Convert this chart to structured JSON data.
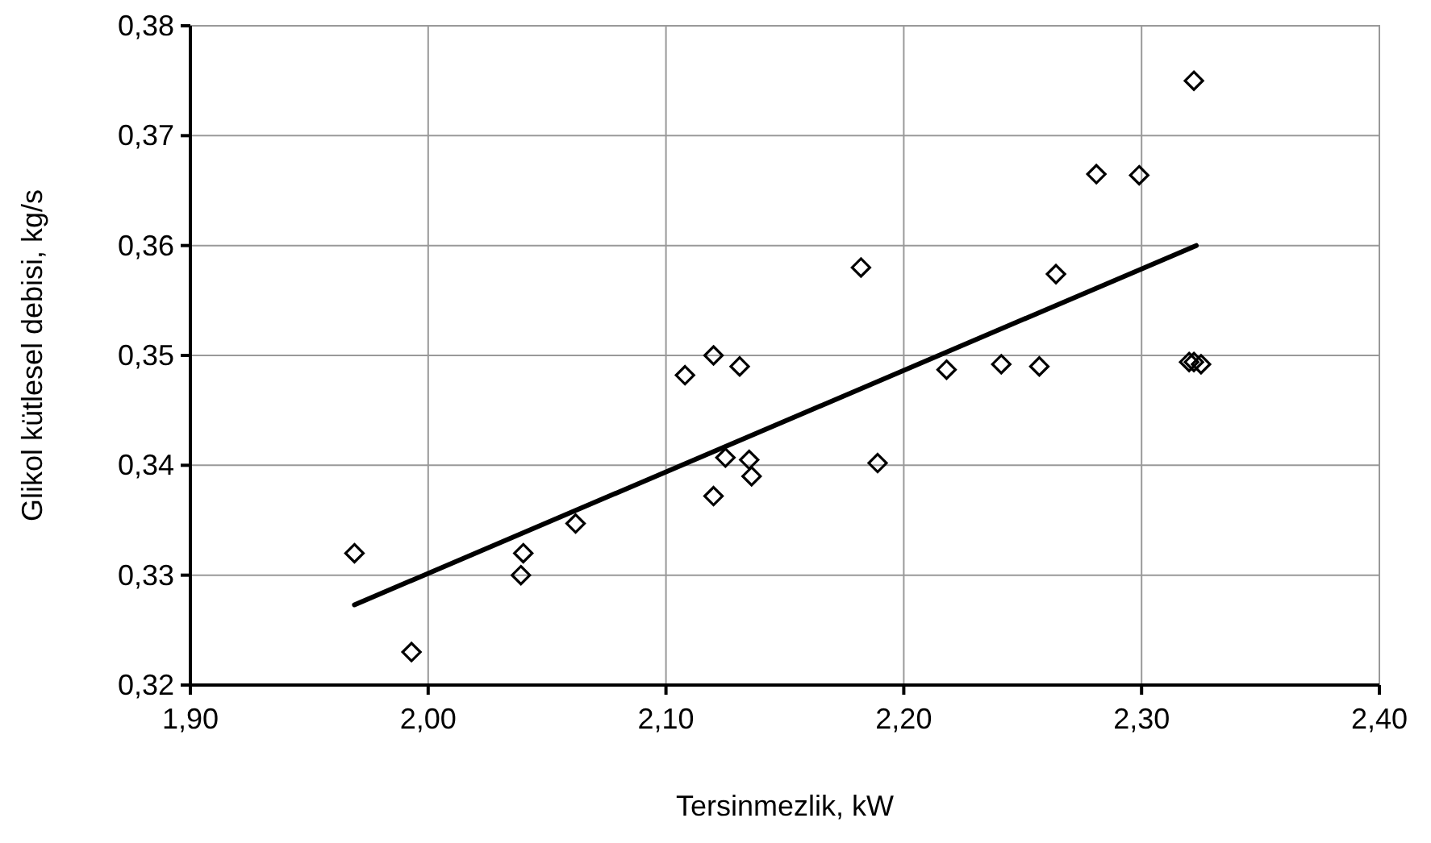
{
  "chart_data": {
    "type": "scatter",
    "xlabel": "Tersinmezlik, kW",
    "ylabel": "Glikol kütlesel debisi, kg/s",
    "xlim": [
      1.9,
      2.4
    ],
    "ylim": [
      0.32,
      0.38
    ],
    "xticks": [
      {
        "value": 1.9,
        "label": "1,90"
      },
      {
        "value": 2.0,
        "label": "2,00"
      },
      {
        "value": 2.1,
        "label": "2,10"
      },
      {
        "value": 2.2,
        "label": "2,20"
      },
      {
        "value": 2.3,
        "label": "2,30"
      },
      {
        "value": 2.4,
        "label": "2,40"
      }
    ],
    "yticks": [
      {
        "value": 0.32,
        "label": "0,32"
      },
      {
        "value": 0.33,
        "label": "0,33"
      },
      {
        "value": 0.34,
        "label": "0,34"
      },
      {
        "value": 0.35,
        "label": "0,35"
      },
      {
        "value": 0.36,
        "label": "0,36"
      },
      {
        "value": 0.37,
        "label": "0,37"
      },
      {
        "value": 0.38,
        "label": "0,38"
      }
    ],
    "grid": true,
    "series": [
      {
        "color": "#000000",
        "marker": "diamond",
        "x": [
          1.969,
          1.993,
          2.039,
          2.04,
          2.062,
          2.108,
          2.12,
          2.131,
          2.12,
          2.125,
          2.135,
          2.136,
          2.182,
          2.189,
          2.218,
          2.241,
          2.257,
          2.264,
          2.281,
          2.299,
          2.322,
          2.32,
          2.322,
          2.325
        ],
        "values": [
          0.332,
          0.323,
          0.33,
          0.332,
          0.3347,
          0.3482,
          0.35,
          0.349,
          0.3372,
          0.3407,
          0.3405,
          0.339,
          0.358,
          0.3402,
          0.3487,
          0.3492,
          0.349,
          0.3574,
          0.3665,
          0.3664,
          0.375,
          0.3494,
          0.3494,
          0.3492
        ]
      },
      {
        "type": "line",
        "color": "#000000",
        "marker": "none",
        "line_style": "solid",
        "x": [
          1.969,
          2.323
        ],
        "values": [
          0.3273,
          0.36
        ]
      }
    ]
  }
}
